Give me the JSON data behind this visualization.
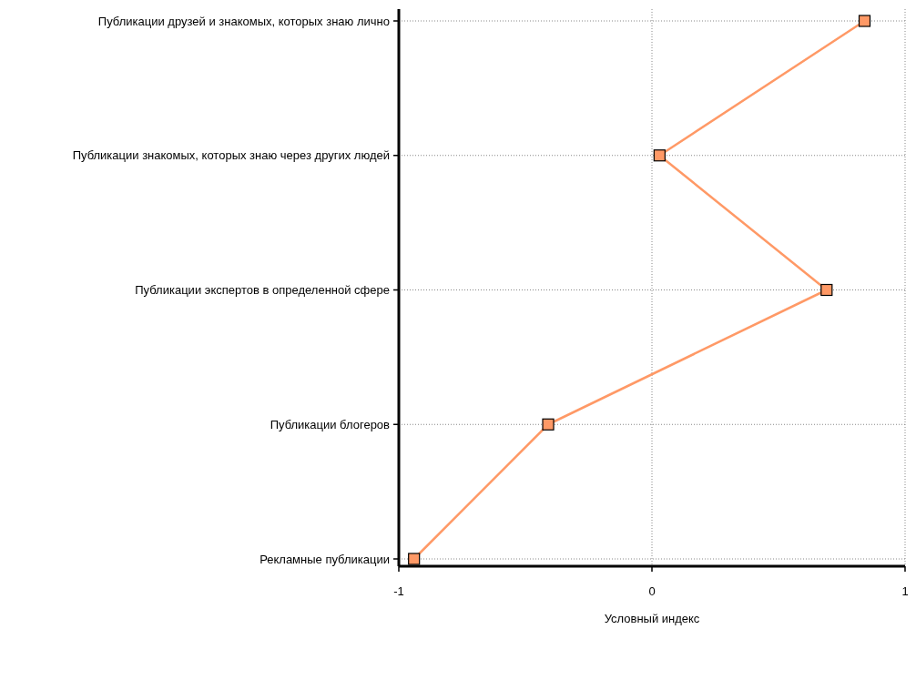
{
  "chart_data": {
    "type": "line",
    "orientation": "horizontal",
    "xlabel": "Условный индекс",
    "categories": [
      "Публикации друзей и знакомых, которых знаю лично",
      "Публикации знакомых, которых знаю через других людей",
      "Публикации экспертов в определенной сфере",
      "Публикации блогеров",
      "Рекламные публикации"
    ],
    "series": [
      {
        "color": "#ff9966",
        "values": [
          0.84,
          0.03,
          0.69,
          -0.41,
          -0.94
        ]
      }
    ],
    "xlim": [
      -1,
      1
    ],
    "xticks": [
      -1,
      0,
      1
    ],
    "grid": true,
    "marker": "square",
    "line_style": "solid"
  }
}
